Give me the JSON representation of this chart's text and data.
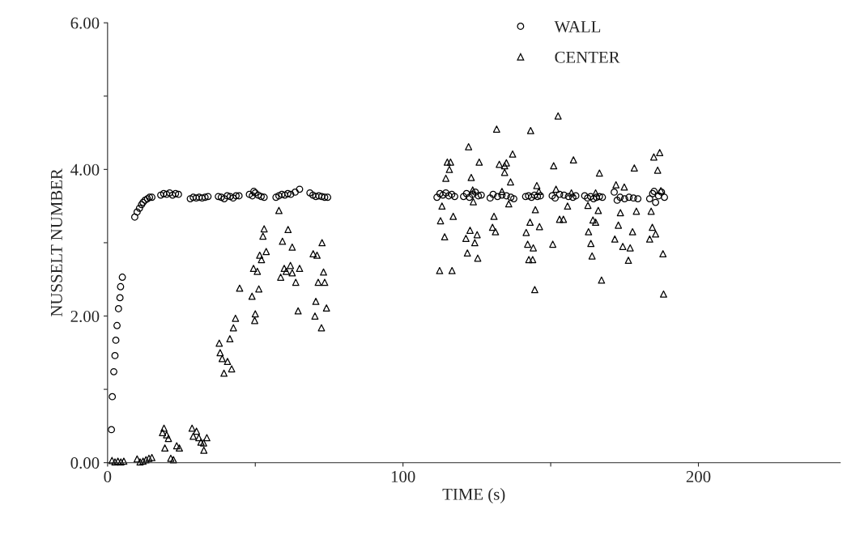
{
  "chart_data": {
    "type": "scatter",
    "xlabel": "TIME (s)",
    "ylabel": "NUSSELT NUMBER",
    "xlim": [
      0,
      248
    ],
    "ylim": [
      0,
      6
    ],
    "xticks": [
      0,
      {
        "value": 50,
        "label": null
      },
      100,
      {
        "value": 150,
        "label": null
      },
      200
    ],
    "yticks": [
      {
        "value": 0,
        "label": "0.00"
      },
      {
        "value": 1,
        "label": null
      },
      {
        "value": 2,
        "label": "2.00"
      },
      {
        "value": 3,
        "label": null
      },
      {
        "value": 4,
        "label": "4.00"
      },
      {
        "value": 5,
        "label": null
      },
      {
        "value": 6,
        "label": "6.00"
      }
    ],
    "grid": false,
    "legend": "top",
    "series": [
      {
        "name": "WALL",
        "color": "#000000",
        "marker": "circle",
        "x": [
          1.3,
          1.6,
          2.1,
          2.5,
          2.8,
          3.2,
          3.7,
          4.2,
          4.4,
          5.0,
          9.2,
          10,
          10.8,
          11.5,
          12,
          12.7,
          13.5,
          14.2,
          15,
          18,
          19,
          20,
          21,
          22,
          23,
          24,
          28,
          29,
          30,
          31,
          32,
          33,
          34,
          37.5,
          38.5,
          39.5,
          40.5,
          41.5,
          42.5,
          43.5,
          44.5,
          48,
          49,
          50,
          51,
          52,
          53,
          49.5,
          57,
          58,
          59,
          60,
          61,
          62,
          63.5,
          65,
          68.5,
          69.5,
          70.5,
          71.5,
          72.5,
          73.5,
          74.5,
          111.5,
          112.5,
          113.5,
          114.5,
          115.5,
          116.5,
          117.5,
          120.5,
          121.5,
          122.5,
          123.5,
          124.5,
          125.5,
          126.5,
          129.5,
          130.5,
          132,
          133.5,
          135,
          136.5,
          137.5,
          141.5,
          142.5,
          143.5,
          144.5,
          145.5,
          146.5,
          150.5,
          151.5,
          153,
          154.5,
          156,
          157.5,
          158.5,
          161.5,
          162.5,
          163.5,
          164.5,
          165.5,
          166.5,
          167.5,
          171.5,
          172.5,
          173.5,
          175,
          176.5,
          178,
          179.5,
          183.5,
          184.5,
          185.5,
          186.5,
          187.5,
          188.5,
          185
        ],
        "values": [
          0.45,
          0.9,
          1.24,
          1.46,
          1.67,
          1.87,
          2.1,
          2.25,
          2.4,
          2.53,
          3.35,
          3.42,
          3.47,
          3.52,
          3.55,
          3.58,
          3.6,
          3.62,
          3.62,
          3.65,
          3.67,
          3.66,
          3.68,
          3.65,
          3.67,
          3.66,
          3.6,
          3.62,
          3.61,
          3.62,
          3.61,
          3.62,
          3.63,
          3.63,
          3.62,
          3.6,
          3.64,
          3.63,
          3.61,
          3.64,
          3.64,
          3.66,
          3.64,
          3.68,
          3.65,
          3.63,
          3.62,
          3.7,
          3.62,
          3.64,
          3.66,
          3.65,
          3.67,
          3.66,
          3.69,
          3.73,
          3.68,
          3.65,
          3.63,
          3.64,
          3.63,
          3.62,
          3.62,
          3.62,
          3.67,
          3.65,
          3.68,
          3.64,
          3.66,
          3.63,
          3.63,
          3.67,
          3.62,
          3.66,
          3.69,
          3.64,
          3.65,
          3.61,
          3.66,
          3.63,
          3.65,
          3.64,
          3.62,
          3.6,
          3.63,
          3.64,
          3.62,
          3.65,
          3.63,
          3.64,
          3.64,
          3.61,
          3.66,
          3.65,
          3.63,
          3.62,
          3.64,
          3.64,
          3.61,
          3.63,
          3.6,
          3.62,
          3.63,
          3.62,
          3.69,
          3.58,
          3.62,
          3.6,
          3.62,
          3.61,
          3.6,
          3.6,
          3.67,
          3.55,
          3.64,
          3.69,
          3.62,
          3.7
        ]
      },
      {
        "name": "CENTER",
        "color": "#000000",
        "marker": "triangle",
        "x": [
          1.5,
          2.5,
          3.5,
          4.5,
          5.5,
          10,
          11,
          12,
          13,
          14,
          15,
          19.1,
          20,
          20.6,
          18.6,
          19.4,
          21.4,
          22.3,
          23.4,
          24.3,
          28.6,
          30.1,
          29,
          30.9,
          31.6,
          32.5,
          33.6,
          32.6,
          37.8,
          38.1,
          38.8,
          39.4,
          40.6,
          42,
          41.4,
          42.6,
          43.3,
          44.7,
          48.9,
          50,
          49.8,
          51.2,
          49.4,
          50.7,
          51.5,
          52.1,
          52.6,
          53,
          53.7,
          58,
          61.1,
          59.2,
          62.5,
          59.8,
          61.9,
          60.5,
          62.5,
          65,
          58.6,
          63.7,
          64.5,
          72.6,
          69.6,
          70.9,
          73.1,
          71.3,
          73.5,
          70.5,
          74.1,
          70.2,
          72.4,
          152.5,
          131.7,
          143.2,
          122.2,
          137.1,
          186.9,
          184.9,
          157.7,
          151,
          125.8,
          178.3,
          186.2,
          166.5,
          115,
          116.1,
          115.7,
          132.6,
          134.4,
          135,
          134.4,
          114.5,
          123.1,
          136.4,
          145.3,
          146,
          151.8,
          157,
          165.2,
          172.1,
          174.9,
          187.3,
          123.6,
          133.5,
          113.2,
          123.8,
          135.8,
          155.7,
          162.6,
          112.7,
          117,
          114.1,
          130.8,
          130.3,
          131.3,
          122.7,
          125.1,
          121.3,
          124.3,
          121.8,
          125.3,
          112.4,
          116.6,
          144.8,
          143,
          146.2,
          141.7,
          142.2,
          144.1,
          142.6,
          143.9,
          144.6,
          153,
          154.3,
          150.7,
          166.1,
          164.3,
          165.2,
          162.8,
          163.6,
          164,
          167.2,
          173.6,
          179,
          172.9,
          177.7,
          171.7,
          174.4,
          176.9,
          176.3,
          184,
          184.4,
          185.5,
          183.5,
          188,
          188.2
        ],
        "values": [
          0.03,
          0.01,
          0.02,
          0.01,
          0.02,
          0.05,
          0.01,
          0.02,
          0.04,
          0.06,
          0.07,
          0.47,
          0.38,
          0.33,
          0.41,
          0.2,
          0.06,
          0.04,
          0.23,
          0.2,
          0.47,
          0.43,
          0.36,
          0.34,
          0.28,
          0.27,
          0.34,
          0.17,
          1.63,
          1.5,
          1.42,
          1.22,
          1.38,
          1.28,
          1.69,
          1.84,
          1.97,
          2.38,
          2.27,
          2.03,
          1.94,
          2.37,
          2.65,
          2.61,
          2.83,
          2.77,
          3.09,
          3.19,
          2.88,
          3.44,
          3.18,
          3.02,
          2.94,
          2.65,
          2.69,
          2.61,
          2.59,
          2.65,
          2.53,
          2.46,
          2.07,
          3.0,
          2.85,
          2.83,
          2.6,
          2.46,
          2.46,
          2.2,
          2.11,
          2.0,
          1.84,
          4.73,
          4.55,
          4.53,
          4.31,
          4.21,
          4.23,
          4.17,
          4.13,
          4.05,
          4.1,
          4.02,
          3.99,
          3.95,
          4.1,
          4.1,
          4.0,
          4.07,
          4.05,
          4.09,
          3.96,
          3.88,
          3.89,
          3.83,
          3.78,
          3.7,
          3.73,
          3.68,
          3.68,
          3.79,
          3.76,
          3.71,
          3.72,
          3.7,
          3.5,
          3.56,
          3.53,
          3.5,
          3.51,
          3.3,
          3.36,
          3.08,
          3.36,
          3.21,
          3.15,
          3.17,
          3.11,
          3.06,
          3.0,
          2.86,
          2.79,
          2.62,
          2.62,
          3.45,
          3.28,
          3.22,
          3.14,
          2.98,
          2.93,
          2.77,
          2.77,
          2.36,
          3.32,
          3.32,
          2.98,
          3.44,
          3.31,
          3.28,
          3.15,
          2.99,
          2.82,
          2.49,
          3.41,
          3.43,
          3.24,
          3.15,
          3.05,
          2.95,
          2.93,
          2.76,
          3.43,
          3.21,
          3.12,
          3.05,
          2.85,
          2.3
        ]
      }
    ]
  }
}
